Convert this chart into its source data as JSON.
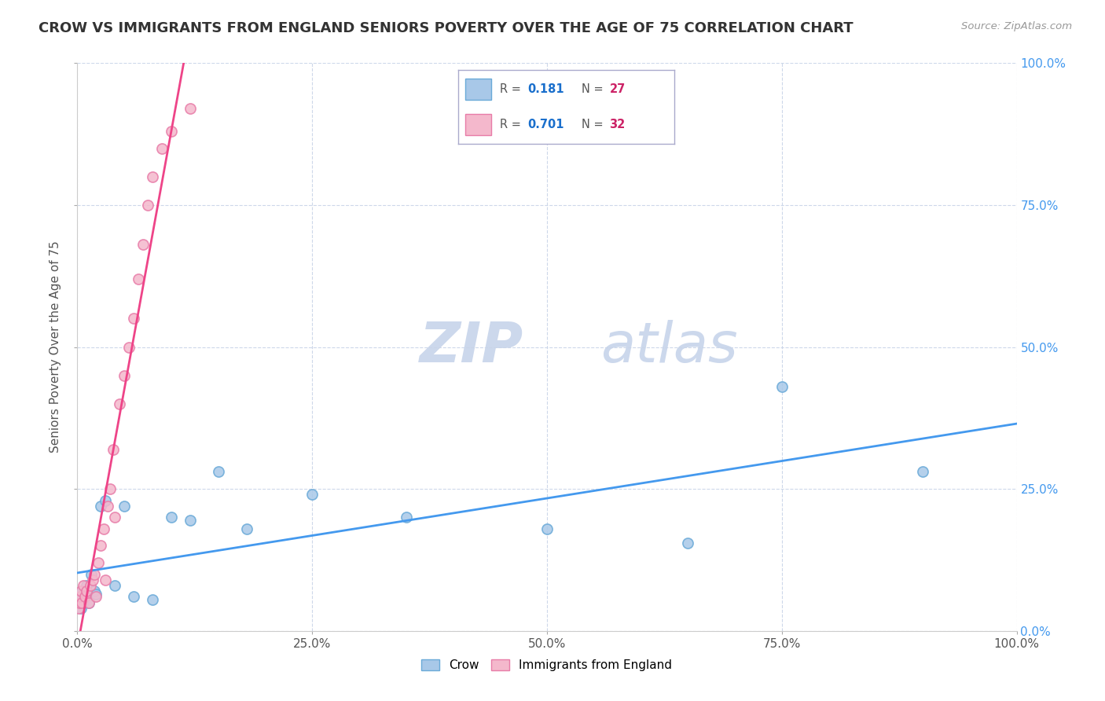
{
  "title": "CROW VS IMMIGRANTS FROM ENGLAND SENIORS POVERTY OVER THE AGE OF 75 CORRELATION CHART",
  "source": "Source: ZipAtlas.com",
  "ylabel": "Seniors Poverty Over the Age of 75",
  "xlim": [
    0,
    100
  ],
  "ylim": [
    0,
    100
  ],
  "xtick_vals": [
    0,
    25,
    50,
    75,
    100
  ],
  "ytick_vals": [
    0,
    25,
    50,
    75,
    100
  ],
  "crow_color": "#a8c8e8",
  "crow_edge_color": "#6aaad8",
  "england_color": "#f4b8cc",
  "england_edge_color": "#e87ca8",
  "crow_R": "0.181",
  "crow_N": "27",
  "england_R": "0.701",
  "england_N": "32",
  "r_color": "#1a6fcc",
  "n_color": "#cc2266",
  "watermark_color": "#ccd8ec",
  "crow_line_color": "#4499ee",
  "england_line_color": "#ee4488",
  "background_color": "#ffffff",
  "grid_color": "#c8d4e8",
  "title_fontsize": 13,
  "label_fontsize": 11,
  "tick_fontsize": 11,
  "marker_size": 90,
  "crow_x": [
    0.2,
    0.3,
    0.4,
    0.5,
    0.6,
    0.8,
    1.0,
    1.2,
    1.5,
    1.8,
    2.0,
    2.5,
    3.0,
    4.0,
    5.0,
    6.0,
    8.0,
    10.0,
    12.0,
    15.0,
    18.0,
    25.0,
    35.0,
    50.0,
    65.0,
    75.0,
    90.0
  ],
  "crow_y": [
    5.0,
    6.0,
    4.0,
    7.0,
    5.0,
    6.0,
    8.0,
    5.0,
    10.0,
    7.0,
    6.5,
    22.0,
    23.0,
    8.0,
    22.0,
    6.0,
    5.5,
    20.0,
    19.5,
    28.0,
    18.0,
    24.0,
    20.0,
    18.0,
    15.5,
    43.0,
    28.0
  ],
  "england_x": [
    0.1,
    0.2,
    0.3,
    0.4,
    0.5,
    0.6,
    0.8,
    1.0,
    1.2,
    1.4,
    1.6,
    1.8,
    2.0,
    2.2,
    2.5,
    2.8,
    3.0,
    3.2,
    3.5,
    3.8,
    4.0,
    4.5,
    5.0,
    5.5,
    6.0,
    6.5,
    7.0,
    7.5,
    8.0,
    9.0,
    10.0,
    12.0
  ],
  "england_y": [
    4.0,
    5.0,
    6.0,
    7.0,
    5.0,
    8.0,
    6.0,
    7.0,
    5.0,
    8.0,
    9.0,
    10.0,
    6.0,
    12.0,
    15.0,
    18.0,
    9.0,
    22.0,
    25.0,
    32.0,
    20.0,
    40.0,
    45.0,
    50.0,
    55.0,
    62.0,
    68.0,
    75.0,
    80.0,
    85.0,
    88.0,
    92.0
  ]
}
